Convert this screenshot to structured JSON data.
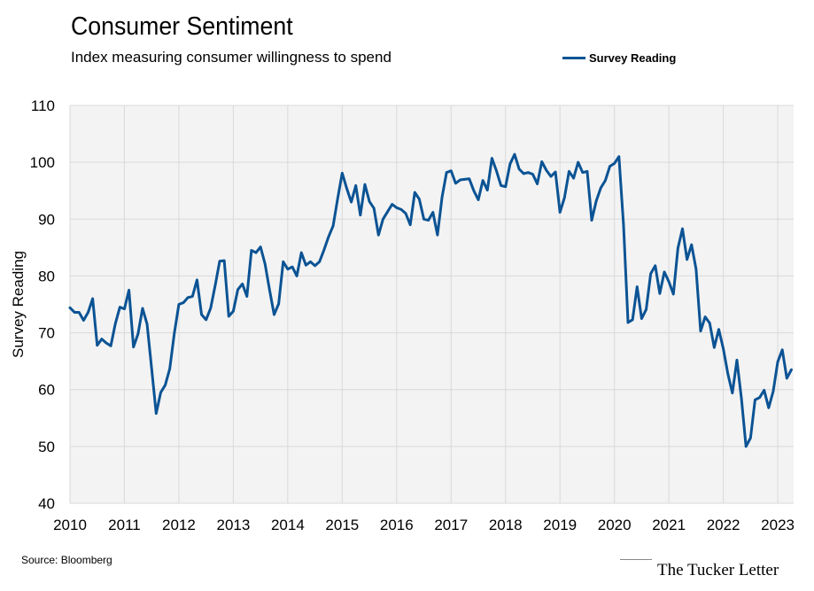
{
  "header": {
    "title": "Consumer Sentiment",
    "subtitle": "Index measuring consumer willingness to spend"
  },
  "footer": {
    "source": "Source: Bloomberg",
    "brand": "The Tucker Letter"
  },
  "colors": {
    "series": "#0b5394",
    "plot_background": "#f3f3f3",
    "grid": "#d9d9d9"
  },
  "chart_data": {
    "type": "line",
    "title": "Consumer Sentiment",
    "subtitle": "Index measuring consumer willingness to spend",
    "xlabel": "",
    "ylabel": "Survey Reading",
    "ylim": [
      40,
      110
    ],
    "xlim": [
      "2010-01",
      "2023-04"
    ],
    "yticks": [
      40,
      50,
      60,
      70,
      80,
      90,
      100,
      110
    ],
    "xticks": [
      "2010",
      "2011",
      "2012",
      "2013",
      "2014",
      "2015",
      "2016",
      "2017",
      "2018",
      "2019",
      "2020",
      "2021",
      "2022",
      "2023"
    ],
    "grid": true,
    "legend": "top-right",
    "series": [
      {
        "name": "Survey Reading",
        "x": [
          "2010-01",
          "2010-02",
          "2010-03",
          "2010-04",
          "2010-05",
          "2010-06",
          "2010-07",
          "2010-08",
          "2010-09",
          "2010-10",
          "2010-11",
          "2010-12",
          "2011-01",
          "2011-02",
          "2011-03",
          "2011-04",
          "2011-05",
          "2011-06",
          "2011-07",
          "2011-08",
          "2011-09",
          "2011-10",
          "2011-11",
          "2011-12",
          "2012-01",
          "2012-02",
          "2012-03",
          "2012-04",
          "2012-05",
          "2012-06",
          "2012-07",
          "2012-08",
          "2012-09",
          "2012-10",
          "2012-11",
          "2012-12",
          "2013-01",
          "2013-02",
          "2013-03",
          "2013-04",
          "2013-05",
          "2013-06",
          "2013-07",
          "2013-08",
          "2013-09",
          "2013-10",
          "2013-11",
          "2013-12",
          "2014-01",
          "2014-02",
          "2014-03",
          "2014-04",
          "2014-05",
          "2014-06",
          "2014-07",
          "2014-08",
          "2014-09",
          "2014-10",
          "2014-11",
          "2014-12",
          "2015-01",
          "2015-02",
          "2015-03",
          "2015-04",
          "2015-05",
          "2015-06",
          "2015-07",
          "2015-08",
          "2015-09",
          "2015-10",
          "2015-11",
          "2015-12",
          "2016-01",
          "2016-02",
          "2016-03",
          "2016-04",
          "2016-05",
          "2016-06",
          "2016-07",
          "2016-08",
          "2016-09",
          "2016-10",
          "2016-11",
          "2016-12",
          "2017-01",
          "2017-02",
          "2017-03",
          "2017-04",
          "2017-05",
          "2017-06",
          "2017-07",
          "2017-08",
          "2017-09",
          "2017-10",
          "2017-11",
          "2017-12",
          "2018-01",
          "2018-02",
          "2018-03",
          "2018-04",
          "2018-05",
          "2018-06",
          "2018-07",
          "2018-08",
          "2018-09",
          "2018-10",
          "2018-11",
          "2018-12",
          "2019-01",
          "2019-02",
          "2019-03",
          "2019-04",
          "2019-05",
          "2019-06",
          "2019-07",
          "2019-08",
          "2019-09",
          "2019-10",
          "2019-11",
          "2019-12",
          "2020-01",
          "2020-02",
          "2020-03",
          "2020-04",
          "2020-05",
          "2020-06",
          "2020-07",
          "2020-08",
          "2020-09",
          "2020-10",
          "2020-11",
          "2020-12",
          "2021-01",
          "2021-02",
          "2021-03",
          "2021-04",
          "2021-05",
          "2021-06",
          "2021-07",
          "2021-08",
          "2021-09",
          "2021-10",
          "2021-11",
          "2021-12",
          "2022-01",
          "2022-02",
          "2022-03",
          "2022-04",
          "2022-05",
          "2022-06",
          "2022-07",
          "2022-08",
          "2022-09",
          "2022-10",
          "2022-11",
          "2022-12",
          "2023-01",
          "2023-02",
          "2023-03",
          "2023-04"
        ],
        "values": [
          74.4,
          73.6,
          73.6,
          72.2,
          73.6,
          76.0,
          67.8,
          68.9,
          68.2,
          67.7,
          71.6,
          74.5,
          74.2,
          77.5,
          67.5,
          69.8,
          74.3,
          71.5,
          63.7,
          55.8,
          59.5,
          60.8,
          63.7,
          69.9,
          75.0,
          75.3,
          76.2,
          76.4,
          79.3,
          73.2,
          72.3,
          74.3,
          78.3,
          82.6,
          82.7,
          72.9,
          73.8,
          77.6,
          78.6,
          76.4,
          84.5,
          84.1,
          85.1,
          82.1,
          77.5,
          73.2,
          75.1,
          82.5,
          81.2,
          81.6,
          80.0,
          84.1,
          81.9,
          82.5,
          81.8,
          82.5,
          84.6,
          86.9,
          88.8,
          93.6,
          98.1,
          95.4,
          93.0,
          95.9,
          90.7,
          96.1,
          93.1,
          91.9,
          87.2,
          90.0,
          91.3,
          92.6,
          92.0,
          91.7,
          91.0,
          89.0,
          94.7,
          93.5,
          90.0,
          89.8,
          91.2,
          87.2,
          93.8,
          98.2,
          98.5,
          96.3,
          96.9,
          97.0,
          97.1,
          95.0,
          93.4,
          96.8,
          95.1,
          100.7,
          98.5,
          95.9,
          95.7,
          99.7,
          101.4,
          98.8,
          98.0,
          98.2,
          97.9,
          96.2,
          100.1,
          98.6,
          97.5,
          98.3,
          91.2,
          93.8,
          98.4,
          97.2,
          100.0,
          98.2,
          98.4,
          89.8,
          93.2,
          95.5,
          96.8,
          99.3,
          99.8,
          101.0,
          89.1,
          71.8,
          72.3,
          78.1,
          72.5,
          74.1,
          80.4,
          81.8,
          76.9,
          80.7,
          79.0,
          76.8,
          84.9,
          88.3,
          82.9,
          85.5,
          81.2,
          70.3,
          72.8,
          71.7,
          67.4,
          70.6,
          67.2,
          62.8,
          59.4,
          65.2,
          58.4,
          50.0,
          51.5,
          58.2,
          58.6,
          59.9,
          56.8,
          59.7,
          64.9,
          67.0,
          62.0,
          63.5
        ]
      }
    ]
  }
}
